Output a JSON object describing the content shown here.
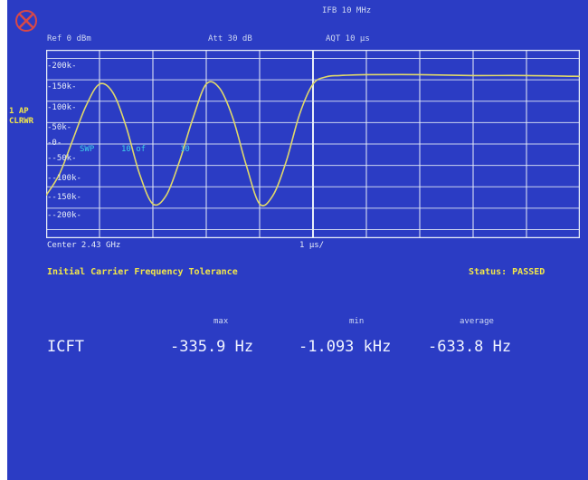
{
  "header": {
    "ifb": "IFB 10 MHz",
    "ref": "Ref  0 dBm",
    "att": "Att  30 dB",
    "aqt": "AQT 10 µs"
  },
  "side": {
    "trace_mode_line1": "1 AP",
    "trace_mode_line2": "CLRWR"
  },
  "plot": {
    "y_ticks": [
      "-200k-",
      "-150k-",
      "-100k-",
      "-50k-",
      "-0-",
      "--50k-",
      "--100k-",
      "--150k-",
      "--200k-"
    ],
    "overlay": [
      "SWP",
      "10 of",
      "10"
    ],
    "center": "Center 2.43 GHz",
    "span": "1 µs/"
  },
  "measurement": {
    "title": "Initial Carrier Frequency Tolerance",
    "status": "Status: PASSED",
    "headers": {
      "max": "max",
      "min": "min",
      "average": "average"
    },
    "row_label": "ICFT",
    "max_value": "-335.9 Hz",
    "min_value": "-1.093 kHz",
    "average_value": "-633.8 Hz"
  },
  "colors": {
    "background": "#2b3cc4",
    "trace": "#e0d86a",
    "grid": "#e8eef8",
    "label_yellow": "#f2e64a",
    "cyan": "#3fd0e8"
  },
  "chart_data": {
    "type": "line",
    "xlabel": "",
    "ylabel": "",
    "x_divisions": 10,
    "x_unit_per_div_us": 1,
    "ylim": [
      -220,
      220
    ],
    "y_unit": "kHz",
    "series": [
      {
        "x_div": [
          0.0,
          0.25,
          0.5,
          0.75,
          1.0,
          1.25,
          1.5,
          1.75,
          2.0,
          2.25,
          2.5,
          2.75,
          3.0,
          3.25,
          3.5,
          3.75,
          4.0,
          4.25,
          4.5,
          4.75,
          5.0,
          5.25,
          5.5,
          6,
          7,
          8,
          9,
          10
        ],
        "y_khz": [
          -120,
          -70,
          10,
          90,
          140,
          120,
          40,
          -70,
          -140,
          -120,
          -40,
          60,
          140,
          130,
          60,
          -50,
          -140,
          -120,
          -40,
          70,
          140,
          157,
          160,
          162,
          162,
          160,
          160,
          158
        ]
      }
    ]
  }
}
